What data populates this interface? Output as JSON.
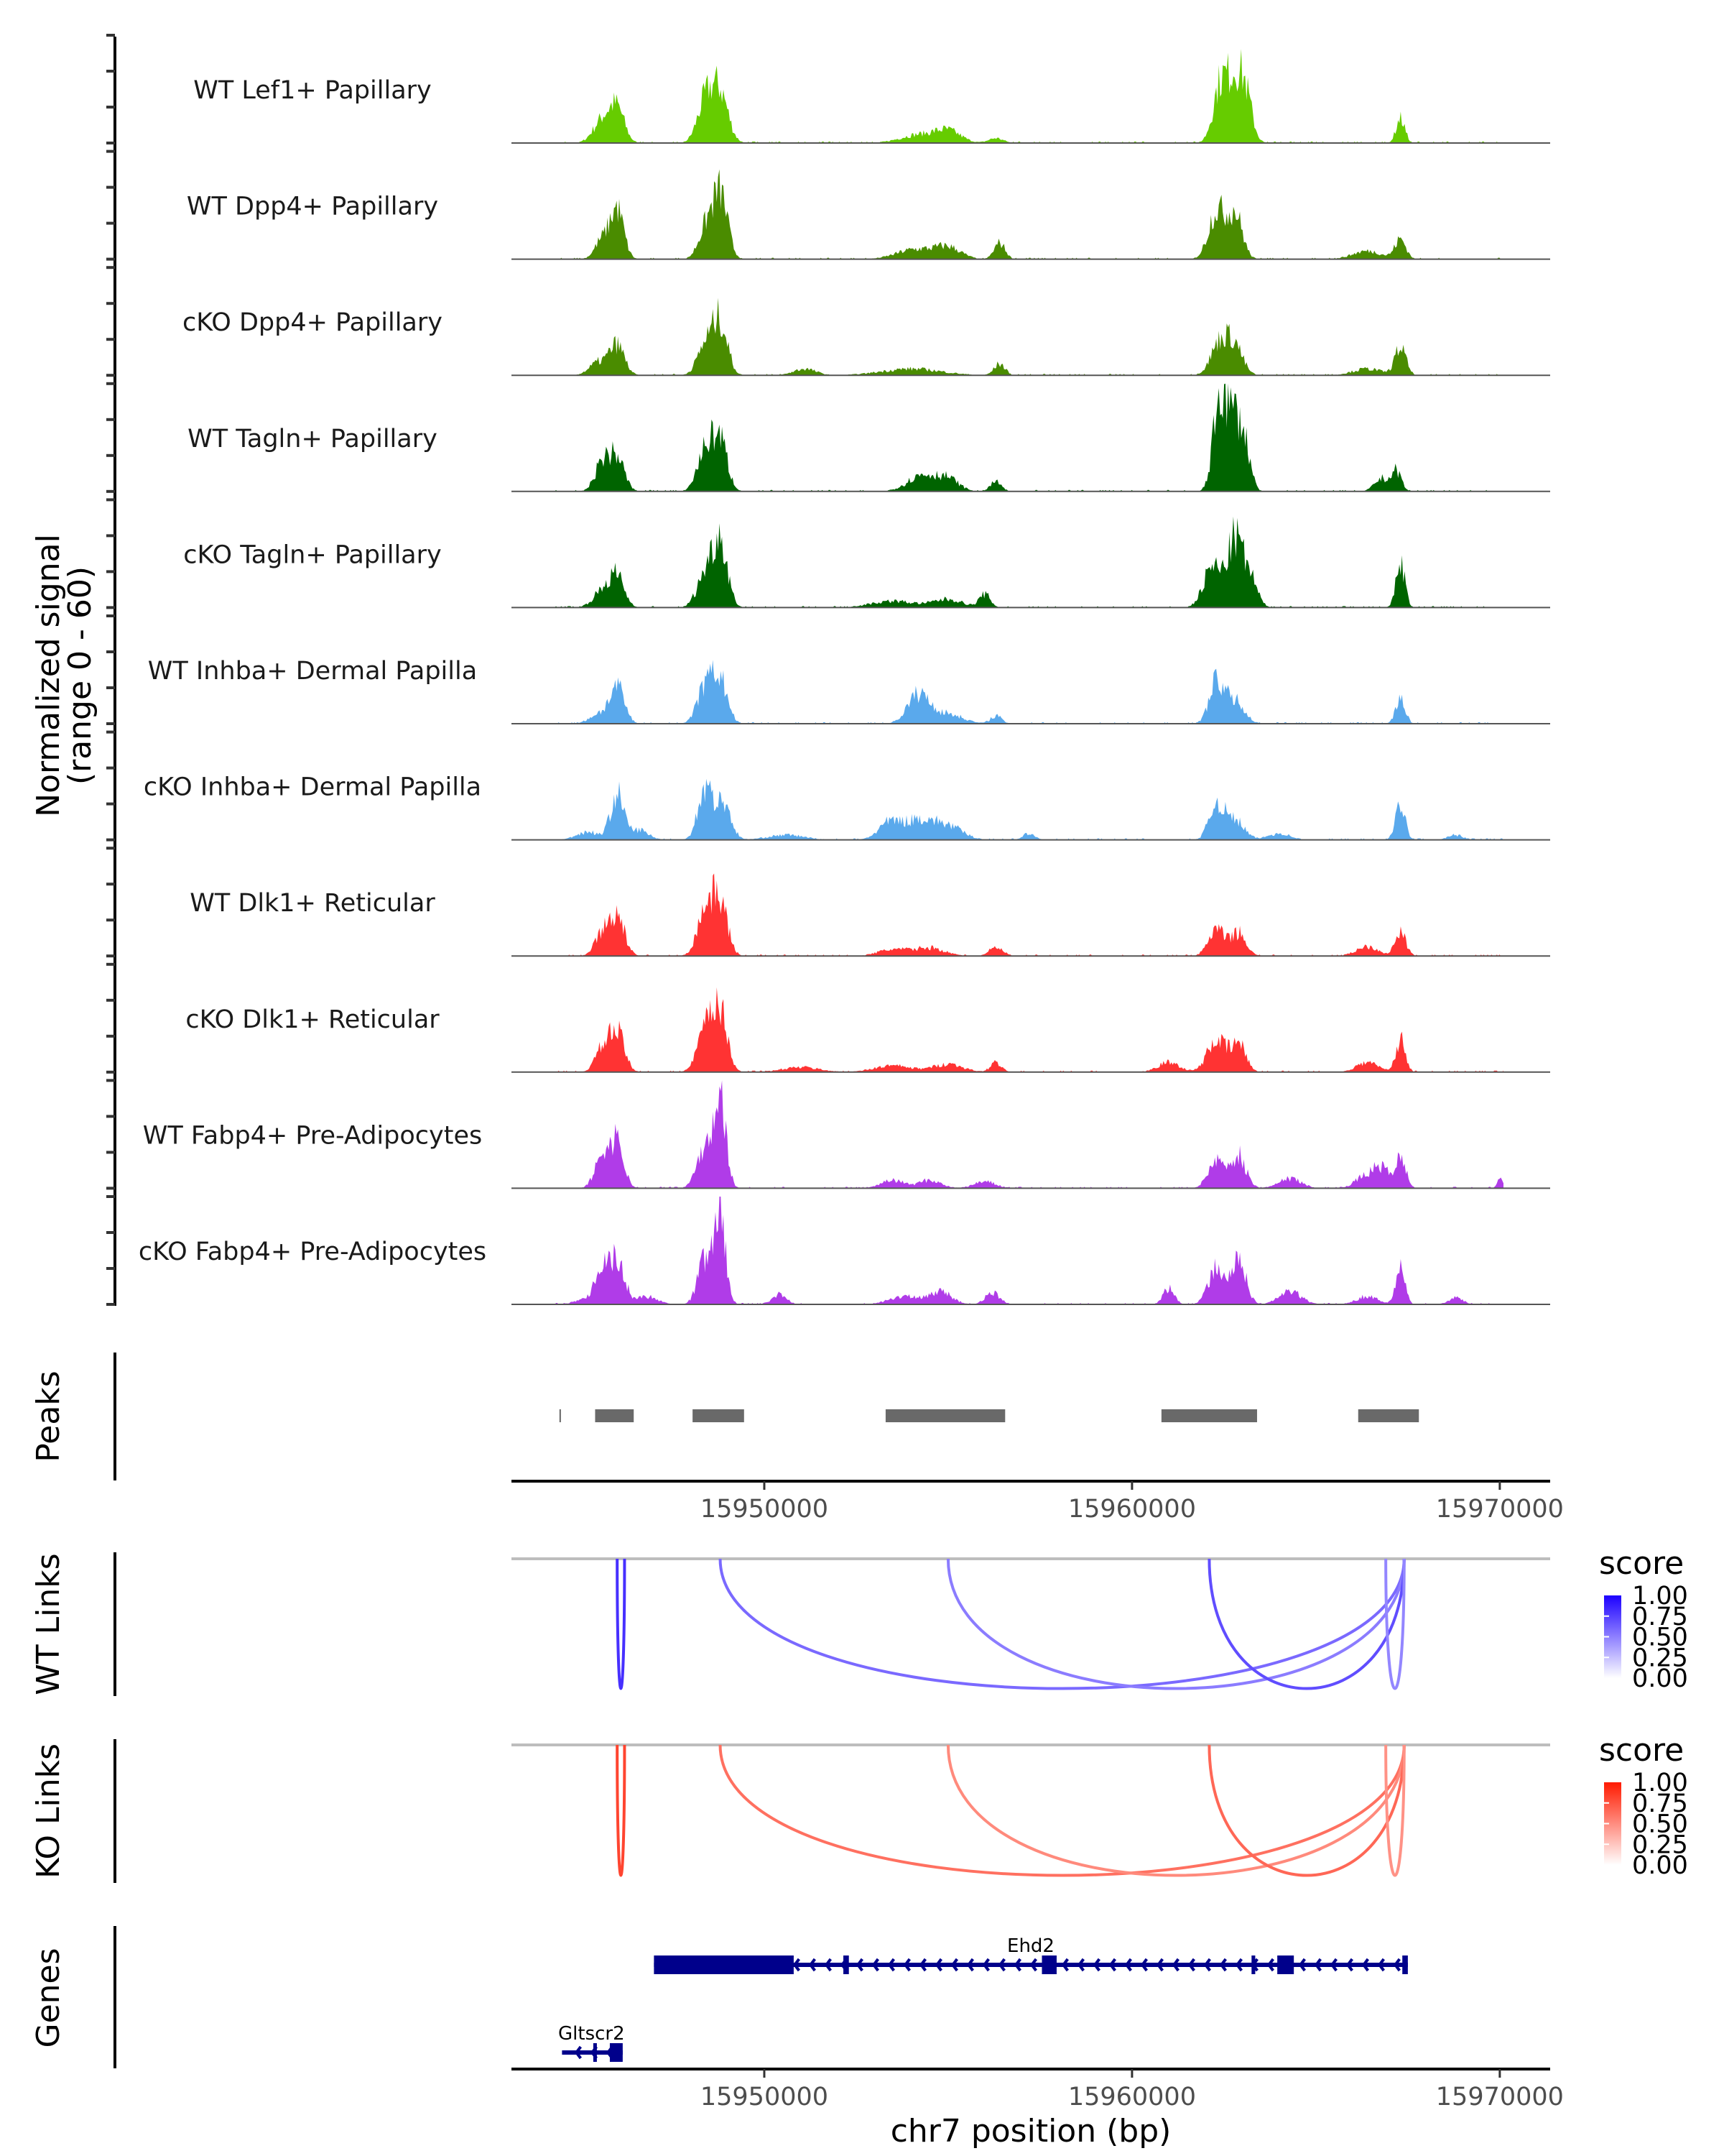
{
  "chart_data": {
    "type": "area",
    "title": "",
    "chromosome": "chr7",
    "region": [
      15943125,
      15971370
    ],
    "xlabel": "chr7 position (bp)",
    "x_ticks": [
      15950000,
      15960000,
      15970000
    ],
    "x_tick_labels": [
      "15950000",
      "15960000",
      "15970000"
    ],
    "coverage": {
      "ylabel_line1": "Normalized signal",
      "ylabel_line2": "(range 0 - 60)",
      "ylim": [
        0,
        60
      ],
      "tracks": [
        {
          "name": "WT Lef1+ Papillary",
          "color": "#66cc00",
          "peaks": [
            [
              15945600,
              14,
              250
            ],
            [
              15946000,
              20,
              200
            ],
            [
              15948400,
              25,
              220
            ],
            [
              15948800,
              30,
              220
            ],
            [
              15954200,
              5,
              500
            ],
            [
              15955000,
              7,
              350
            ],
            [
              15956300,
              3,
              200
            ],
            [
              15962400,
              35,
              200
            ],
            [
              15962800,
              35,
              200
            ],
            [
              15963100,
              25,
              180
            ],
            [
              15967300,
              15,
              120
            ]
          ]
        },
        {
          "name": "WT Dpp4+ Papillary",
          "color": "#4a8c00",
          "peaks": [
            [
              15945600,
              12,
              200
            ],
            [
              15946000,
              30,
              180
            ],
            [
              15948400,
              18,
              200
            ],
            [
              15948800,
              40,
              200
            ],
            [
              15954100,
              6,
              500
            ],
            [
              15955000,
              7,
              350
            ],
            [
              15956400,
              10,
              150
            ],
            [
              15962300,
              30,
              220
            ],
            [
              15962800,
              28,
              200
            ],
            [
              15966400,
              5,
              400
            ],
            [
              15967300,
              12,
              150
            ]
          ]
        },
        {
          "name": "cKO Dpp4+ Papillary",
          "color": "#4a8c00",
          "peaks": [
            [
              15945500,
              8,
              250
            ],
            [
              15946000,
              18,
              200
            ],
            [
              15948400,
              18,
              220
            ],
            [
              15948800,
              32,
              200
            ],
            [
              15951100,
              4,
              300
            ],
            [
              15954000,
              4,
              800
            ],
            [
              15956400,
              7,
              150
            ],
            [
              15962400,
              20,
              250
            ],
            [
              15962800,
              16,
              220
            ],
            [
              15966400,
              4,
              400
            ],
            [
              15967300,
              17,
              150
            ]
          ]
        },
        {
          "name": "WT Tagln+ Papillary",
          "color": "#006400",
          "peaks": [
            [
              15945600,
              18,
              200
            ],
            [
              15946000,
              20,
              200
            ],
            [
              15948400,
              25,
              220
            ],
            [
              15948800,
              30,
              200
            ],
            [
              15954300,
              10,
              400
            ],
            [
              15955000,
              7,
              300
            ],
            [
              15956300,
              6,
              150
            ],
            [
              15962400,
              60,
              180
            ],
            [
              15962800,
              42,
              180
            ],
            [
              15963100,
              22,
              150
            ],
            [
              15966800,
              8,
              200
            ],
            [
              15967200,
              12,
              130
            ]
          ]
        },
        {
          "name": "cKO Tagln+ Papillary",
          "color": "#006400",
          "peaks": [
            [
              15945600,
              10,
              250
            ],
            [
              15946000,
              18,
              200
            ],
            [
              15948400,
              20,
              230
            ],
            [
              15948800,
              40,
              200
            ],
            [
              15953500,
              4,
              600
            ],
            [
              15955000,
              5,
              400
            ],
            [
              15956000,
              8,
              150
            ],
            [
              15962200,
              25,
              250
            ],
            [
              15962800,
              40,
              200
            ],
            [
              15963200,
              18,
              200
            ],
            [
              15967300,
              28,
              120
            ]
          ]
        },
        {
          "name": "WT Inhba+ Dermal Papilla",
          "color": "#5aa9ec",
          "peaks": [
            [
              15945500,
              6,
              250
            ],
            [
              15946000,
              22,
              200
            ],
            [
              15948400,
              22,
              220
            ],
            [
              15948800,
              26,
              200
            ],
            [
              15954200,
              18,
              300
            ],
            [
              15955000,
              6,
              400
            ],
            [
              15956300,
              5,
              150
            ],
            [
              15962300,
              25,
              200
            ],
            [
              15962800,
              14,
              250
            ],
            [
              15967300,
              15,
              130
            ]
          ]
        },
        {
          "name": "cKO Inhba+ Dermal Papilla",
          "color": "#5aa9ec",
          "peaks": [
            [
              15945200,
              5,
              300
            ],
            [
              15946000,
              28,
              180
            ],
            [
              15946600,
              6,
              250
            ],
            [
              15948400,
              32,
              200
            ],
            [
              15948900,
              22,
              200
            ],
            [
              15950600,
              3,
              500
            ],
            [
              15953400,
              10,
              300
            ],
            [
              15954200,
              12,
              400
            ],
            [
              15955000,
              8,
              400
            ],
            [
              15957200,
              4,
              150
            ],
            [
              15962300,
              22,
              200
            ],
            [
              15962800,
              12,
              250
            ],
            [
              15964000,
              4,
              300
            ],
            [
              15967300,
              22,
              130
            ],
            [
              15968800,
              3,
              200
            ]
          ]
        },
        {
          "name": "WT Dlk1+ Reticular",
          "color": "#ff3333",
          "peaks": [
            [
              15945600,
              14,
              200
            ],
            [
              15946000,
              24,
              200
            ],
            [
              15948400,
              28,
              220
            ],
            [
              15948800,
              32,
              200
            ],
            [
              15953500,
              4,
              400
            ],
            [
              15954500,
              5,
              400
            ],
            [
              15956300,
              5,
              200
            ],
            [
              15962300,
              16,
              220
            ],
            [
              15962900,
              14,
              200
            ],
            [
              15966400,
              6,
              300
            ],
            [
              15967300,
              14,
              150
            ]
          ]
        },
        {
          "name": "cKO Dlk1+ Reticular",
          "color": "#ff3333",
          "peaks": [
            [
              15945600,
              14,
              200
            ],
            [
              15946000,
              24,
              200
            ],
            [
              15948400,
              25,
              220
            ],
            [
              15948800,
              35,
              200
            ],
            [
              15951000,
              3,
              500
            ],
            [
              15953500,
              4,
              500
            ],
            [
              15955000,
              5,
              400
            ],
            [
              15956300,
              6,
              150
            ],
            [
              15961000,
              6,
              300
            ],
            [
              15962300,
              20,
              250
            ],
            [
              15962900,
              17,
              200
            ],
            [
              15966400,
              6,
              300
            ],
            [
              15967300,
              20,
              130
            ]
          ]
        },
        {
          "name": "WT Fabp4+ Pre-Adipocytes",
          "color": "#b03ce8",
          "peaks": [
            [
              15945600,
              20,
              200
            ],
            [
              15946000,
              28,
              180
            ],
            [
              15948400,
              26,
              220
            ],
            [
              15948800,
              55,
              160
            ],
            [
              15953500,
              5,
              300
            ],
            [
              15954500,
              5,
              300
            ],
            [
              15956000,
              4,
              300
            ],
            [
              15962300,
              18,
              220
            ],
            [
              15962900,
              20,
              200
            ],
            [
              15964300,
              6,
              300
            ],
            [
              15966400,
              8,
              300
            ],
            [
              15966800,
              10,
              200
            ],
            [
              15967300,
              18,
              150
            ],
            [
              15970000,
              6,
              80
            ]
          ]
        },
        {
          "name": "cKO Fabp4+ Pre-Adipocytes",
          "color": "#b03ce8",
          "peaks": [
            [
              15945200,
              4,
              300
            ],
            [
              15945600,
              22,
              180
            ],
            [
              15946000,
              26,
              200
            ],
            [
              15946800,
              5,
              300
            ],
            [
              15948400,
              28,
              200
            ],
            [
              15948800,
              55,
              150
            ],
            [
              15950400,
              6,
              200
            ],
            [
              15953800,
              5,
              400
            ],
            [
              15954800,
              8,
              300
            ],
            [
              15956200,
              7,
              200
            ],
            [
              15961000,
              10,
              150
            ],
            [
              15962300,
              22,
              220
            ],
            [
              15962900,
              26,
              200
            ],
            [
              15964300,
              8,
              300
            ],
            [
              15966400,
              5,
              300
            ],
            [
              15967300,
              25,
              120
            ],
            [
              15968800,
              4,
              200
            ]
          ]
        }
      ]
    },
    "peaks": {
      "label": "Peaks",
      "color": "#696969",
      "regions": [
        [
          15944430,
          15944470
        ],
        [
          15945400,
          15946450
        ],
        [
          15948050,
          15949450
        ],
        [
          15953300,
          15956550
        ],
        [
          15960800,
          15963400
        ],
        [
          15966150,
          15967800
        ]
      ]
    },
    "links": [
      {
        "label": "WT Links",
        "legend_title": "score",
        "color_low": "#ffffff",
        "color_high": "#1c00ff",
        "arcs": [
          {
            "start": 15946000,
            "end": 15946200,
            "score": 0.75
          },
          {
            "start": 15948800,
            "end": 15967400,
            "score": 0.45
          },
          {
            "start": 15955000,
            "end": 15967400,
            "score": 0.35
          },
          {
            "start": 15962100,
            "end": 15967400,
            "score": 0.6
          },
          {
            "start": 15966900,
            "end": 15967400,
            "score": 0.3
          }
        ]
      },
      {
        "label": "KO Links",
        "legend_title": "score",
        "color_low": "#ffffff",
        "color_high": "#ff1a00",
        "arcs": [
          {
            "start": 15946000,
            "end": 15946200,
            "score": 0.75
          },
          {
            "start": 15948800,
            "end": 15967400,
            "score": 0.5
          },
          {
            "start": 15955000,
            "end": 15967400,
            "score": 0.35
          },
          {
            "start": 15962100,
            "end": 15967400,
            "score": 0.55
          },
          {
            "start": 15966900,
            "end": 15967400,
            "score": 0.3
          }
        ]
      }
    ],
    "legend_ticks": [
      "1.00",
      "0.75",
      "0.50",
      "0.25",
      "0.00"
    ],
    "genes": {
      "label": "Genes",
      "color": "#00008b",
      "items": [
        {
          "name": "Ehd2",
          "start": 15947000,
          "end": 15967500,
          "strand": "-",
          "exons": [
            [
              15947000,
              15950800
            ],
            [
              15952150,
              15952300
            ],
            [
              15957550,
              15957950
            ],
            [
              15963250,
              15963350
            ],
            [
              15963950,
              15964400
            ],
            [
              15967350,
              15967500
            ]
          ]
        },
        {
          "name": "Gltscr2",
          "start": 15944500,
          "end": 15946150,
          "strand": "-",
          "exons": [
            [
              15945800,
              15946150
            ],
            [
              15945350,
              15945400
            ]
          ]
        }
      ]
    }
  }
}
